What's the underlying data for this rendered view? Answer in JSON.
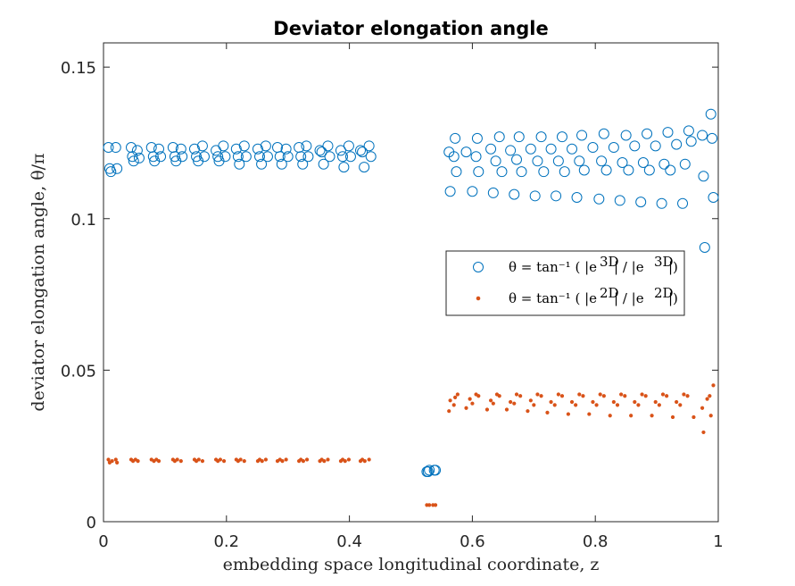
{
  "chart_data": {
    "type": "scatter",
    "title": "Deviator elongation angle",
    "xlabel": "embedding space longitudinal coordinate, z",
    "ylabel": "deviator elongation angle, θ/π",
    "xlim": [
      0,
      1
    ],
    "ylim": [
      0,
      0.158
    ],
    "x_ticks": [
      "0",
      "0.2",
      "0.4",
      "0.6",
      "0.8",
      "1"
    ],
    "x_tick_values": [
      0,
      0.2,
      0.4,
      0.6,
      0.8,
      1
    ],
    "y_ticks": [
      "0",
      "0.05",
      "0.1",
      "0.15"
    ],
    "y_tick_values": [
      0,
      0.05,
      0.1,
      0.15
    ],
    "grid": false,
    "legend_position": "right-center",
    "series": [
      {
        "name": "θ = tan⁻¹(|e_φ^3D| / |e_ζ^3D|)",
        "legend_label": "θ = tan⁻¹ ( |e",
        "marker": "open-circle",
        "color": "#0072BD",
        "points": [
          [
            0.008,
            0.1235
          ],
          [
            0.01,
            0.1165
          ],
          [
            0.012,
            0.1155
          ],
          [
            0.02,
            0.1235
          ],
          [
            0.022,
            0.1165
          ],
          [
            0.045,
            0.1235
          ],
          [
            0.047,
            0.1205
          ],
          [
            0.049,
            0.119
          ],
          [
            0.055,
            0.1225
          ],
          [
            0.058,
            0.12
          ],
          [
            0.078,
            0.1235
          ],
          [
            0.081,
            0.1205
          ],
          [
            0.083,
            0.119
          ],
          [
            0.09,
            0.123
          ],
          [
            0.093,
            0.1205
          ],
          [
            0.113,
            0.1235
          ],
          [
            0.116,
            0.1205
          ],
          [
            0.118,
            0.119
          ],
          [
            0.126,
            0.123
          ],
          [
            0.128,
            0.1205
          ],
          [
            0.148,
            0.123
          ],
          [
            0.151,
            0.1205
          ],
          [
            0.154,
            0.119
          ],
          [
            0.161,
            0.124
          ],
          [
            0.164,
            0.1205
          ],
          [
            0.183,
            0.1225
          ],
          [
            0.186,
            0.1205
          ],
          [
            0.188,
            0.119
          ],
          [
            0.195,
            0.124
          ],
          [
            0.198,
            0.1205
          ],
          [
            0.216,
            0.123
          ],
          [
            0.219,
            0.1205
          ],
          [
            0.221,
            0.118
          ],
          [
            0.229,
            0.124
          ],
          [
            0.232,
            0.1205
          ],
          [
            0.251,
            0.123
          ],
          [
            0.254,
            0.1205
          ],
          [
            0.257,
            0.118
          ],
          [
            0.264,
            0.124
          ],
          [
            0.267,
            0.1205
          ],
          [
            0.283,
            0.1235
          ],
          [
            0.287,
            0.1205
          ],
          [
            0.29,
            0.118
          ],
          [
            0.297,
            0.123
          ],
          [
            0.3,
            0.1205
          ],
          [
            0.318,
            0.1235
          ],
          [
            0.321,
            0.1205
          ],
          [
            0.324,
            0.118
          ],
          [
            0.33,
            0.124
          ],
          [
            0.333,
            0.1205
          ],
          [
            0.352,
            0.1225
          ],
          [
            0.355,
            0.122
          ],
          [
            0.358,
            0.118
          ],
          [
            0.365,
            0.124
          ],
          [
            0.368,
            0.1205
          ],
          [
            0.386,
            0.1225
          ],
          [
            0.389,
            0.1205
          ],
          [
            0.391,
            0.117
          ],
          [
            0.399,
            0.124
          ],
          [
            0.402,
            0.1205
          ],
          [
            0.418,
            0.1225
          ],
          [
            0.421,
            0.122
          ],
          [
            0.424,
            0.117
          ],
          [
            0.432,
            0.124
          ],
          [
            0.435,
            0.1205
          ],
          [
            0.526,
            0.0165
          ],
          [
            0.528,
            0.0165
          ],
          [
            0.53,
            0.017
          ],
          [
            0.538,
            0.017
          ],
          [
            0.54,
            0.017
          ],
          [
            0.562,
            0.122
          ],
          [
            0.564,
            0.109
          ],
          [
            0.57,
            0.1205
          ],
          [
            0.572,
            0.1265
          ],
          [
            0.574,
            0.1155
          ],
          [
            0.59,
            0.122
          ],
          [
            0.6,
            0.109
          ],
          [
            0.606,
            0.1205
          ],
          [
            0.608,
            0.1265
          ],
          [
            0.61,
            0.1155
          ],
          [
            0.63,
            0.123
          ],
          [
            0.634,
            0.1085
          ],
          [
            0.638,
            0.119
          ],
          [
            0.644,
            0.127
          ],
          [
            0.648,
            0.1155
          ],
          [
            0.662,
            0.1225
          ],
          [
            0.668,
            0.108
          ],
          [
            0.672,
            0.1195
          ],
          [
            0.676,
            0.127
          ],
          [
            0.68,
            0.1155
          ],
          [
            0.695,
            0.123
          ],
          [
            0.702,
            0.1075
          ],
          [
            0.706,
            0.119
          ],
          [
            0.712,
            0.127
          ],
          [
            0.716,
            0.1155
          ],
          [
            0.728,
            0.123
          ],
          [
            0.736,
            0.1075
          ],
          [
            0.74,
            0.119
          ],
          [
            0.746,
            0.127
          ],
          [
            0.75,
            0.1155
          ],
          [
            0.762,
            0.123
          ],
          [
            0.77,
            0.107
          ],
          [
            0.774,
            0.119
          ],
          [
            0.778,
            0.1275
          ],
          [
            0.782,
            0.116
          ],
          [
            0.796,
            0.1235
          ],
          [
            0.806,
            0.1065
          ],
          [
            0.81,
            0.119
          ],
          [
            0.814,
            0.128
          ],
          [
            0.818,
            0.116
          ],
          [
            0.83,
            0.1235
          ],
          [
            0.84,
            0.106
          ],
          [
            0.844,
            0.1185
          ],
          [
            0.85,
            0.1275
          ],
          [
            0.854,
            0.116
          ],
          [
            0.864,
            0.124
          ],
          [
            0.874,
            0.1055
          ],
          [
            0.878,
            0.1185
          ],
          [
            0.884,
            0.128
          ],
          [
            0.888,
            0.116
          ],
          [
            0.898,
            0.124
          ],
          [
            0.908,
            0.105
          ],
          [
            0.912,
            0.118
          ],
          [
            0.918,
            0.1285
          ],
          [
            0.922,
            0.116
          ],
          [
            0.932,
            0.1245
          ],
          [
            0.942,
            0.105
          ],
          [
            0.946,
            0.118
          ],
          [
            0.952,
            0.129
          ],
          [
            0.956,
            0.1255
          ],
          [
            0.974,
            0.1275
          ],
          [
            0.976,
            0.114
          ],
          [
            0.978,
            0.0905
          ],
          [
            0.988,
            0.1345
          ],
          [
            0.99,
            0.1265
          ],
          [
            0.992,
            0.107
          ]
        ]
      },
      {
        "name": "θ = tan⁻¹(|e_φ^2D| / |e_ζ^2D|)",
        "legend_label": "θ = tan⁻¹ ( |e",
        "marker": "dot",
        "color": "#D95319",
        "points": [
          [
            0.008,
            0.0205
          ],
          [
            0.01,
            0.0195
          ],
          [
            0.014,
            0.02
          ],
          [
            0.02,
            0.0205
          ],
          [
            0.022,
            0.0195
          ],
          [
            0.045,
            0.0205
          ],
          [
            0.048,
            0.02
          ],
          [
            0.052,
            0.0205
          ],
          [
            0.056,
            0.02
          ],
          [
            0.078,
            0.0205
          ],
          [
            0.082,
            0.02
          ],
          [
            0.086,
            0.0205
          ],
          [
            0.09,
            0.02
          ],
          [
            0.113,
            0.0205
          ],
          [
            0.116,
            0.02
          ],
          [
            0.12,
            0.0205
          ],
          [
            0.126,
            0.02
          ],
          [
            0.148,
            0.0205
          ],
          [
            0.151,
            0.02
          ],
          [
            0.155,
            0.0205
          ],
          [
            0.161,
            0.02
          ],
          [
            0.183,
            0.0205
          ],
          [
            0.186,
            0.02
          ],
          [
            0.19,
            0.0205
          ],
          [
            0.196,
            0.02
          ],
          [
            0.216,
            0.0205
          ],
          [
            0.219,
            0.02
          ],
          [
            0.223,
            0.0205
          ],
          [
            0.229,
            0.02
          ],
          [
            0.251,
            0.02
          ],
          [
            0.254,
            0.0205
          ],
          [
            0.258,
            0.02
          ],
          [
            0.264,
            0.0205
          ],
          [
            0.283,
            0.02
          ],
          [
            0.287,
            0.0205
          ],
          [
            0.291,
            0.02
          ],
          [
            0.297,
            0.0205
          ],
          [
            0.318,
            0.02
          ],
          [
            0.321,
            0.0205
          ],
          [
            0.325,
            0.02
          ],
          [
            0.331,
            0.0205
          ],
          [
            0.352,
            0.02
          ],
          [
            0.355,
            0.0205
          ],
          [
            0.359,
            0.02
          ],
          [
            0.365,
            0.0205
          ],
          [
            0.386,
            0.02
          ],
          [
            0.389,
            0.0205
          ],
          [
            0.393,
            0.02
          ],
          [
            0.399,
            0.0205
          ],
          [
            0.418,
            0.02
          ],
          [
            0.421,
            0.0205
          ],
          [
            0.425,
            0.02
          ],
          [
            0.432,
            0.0205
          ],
          [
            0.526,
            0.0055
          ],
          [
            0.53,
            0.0055
          ],
          [
            0.536,
            0.0055
          ],
          [
            0.54,
            0.0055
          ],
          [
            0.562,
            0.0365
          ],
          [
            0.564,
            0.04
          ],
          [
            0.57,
            0.0385
          ],
          [
            0.572,
            0.041
          ],
          [
            0.576,
            0.042
          ],
          [
            0.59,
            0.0375
          ],
          [
            0.596,
            0.0405
          ],
          [
            0.6,
            0.039
          ],
          [
            0.606,
            0.042
          ],
          [
            0.61,
            0.0415
          ],
          [
            0.624,
            0.037
          ],
          [
            0.63,
            0.04
          ],
          [
            0.634,
            0.039
          ],
          [
            0.64,
            0.042
          ],
          [
            0.644,
            0.0415
          ],
          [
            0.656,
            0.037
          ],
          [
            0.662,
            0.0395
          ],
          [
            0.668,
            0.039
          ],
          [
            0.672,
            0.042
          ],
          [
            0.678,
            0.0415
          ],
          [
            0.69,
            0.0365
          ],
          [
            0.695,
            0.04
          ],
          [
            0.7,
            0.0385
          ],
          [
            0.706,
            0.042
          ],
          [
            0.712,
            0.0415
          ],
          [
            0.722,
            0.036
          ],
          [
            0.728,
            0.0395
          ],
          [
            0.734,
            0.0385
          ],
          [
            0.74,
            0.042
          ],
          [
            0.746,
            0.0415
          ],
          [
            0.756,
            0.0355
          ],
          [
            0.762,
            0.0395
          ],
          [
            0.768,
            0.0385
          ],
          [
            0.774,
            0.042
          ],
          [
            0.78,
            0.0415
          ],
          [
            0.79,
            0.0355
          ],
          [
            0.796,
            0.0395
          ],
          [
            0.802,
            0.0385
          ],
          [
            0.808,
            0.042
          ],
          [
            0.814,
            0.0415
          ],
          [
            0.824,
            0.035
          ],
          [
            0.83,
            0.0395
          ],
          [
            0.836,
            0.0385
          ],
          [
            0.842,
            0.042
          ],
          [
            0.848,
            0.0415
          ],
          [
            0.858,
            0.035
          ],
          [
            0.864,
            0.0395
          ],
          [
            0.87,
            0.0385
          ],
          [
            0.876,
            0.042
          ],
          [
            0.882,
            0.0415
          ],
          [
            0.892,
            0.035
          ],
          [
            0.898,
            0.0395
          ],
          [
            0.904,
            0.0385
          ],
          [
            0.91,
            0.042
          ],
          [
            0.916,
            0.0415
          ],
          [
            0.926,
            0.0345
          ],
          [
            0.932,
            0.0395
          ],
          [
            0.938,
            0.0385
          ],
          [
            0.944,
            0.042
          ],
          [
            0.95,
            0.0415
          ],
          [
            0.96,
            0.0345
          ],
          [
            0.974,
            0.0375
          ],
          [
            0.976,
            0.0295
          ],
          [
            0.982,
            0.0405
          ],
          [
            0.986,
            0.0415
          ],
          [
            0.988,
            0.035
          ],
          [
            0.992,
            0.045
          ]
        ]
      }
    ]
  }
}
